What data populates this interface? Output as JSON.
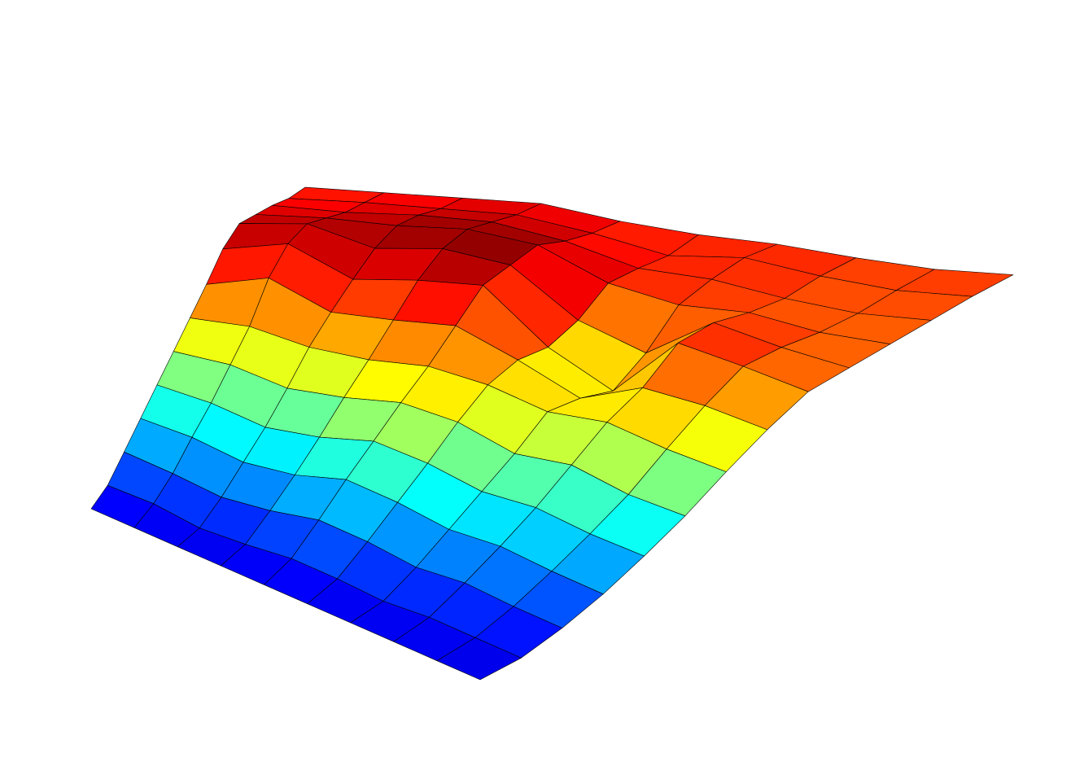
{
  "chart_data": {
    "type": "surface",
    "colormap": "jet",
    "edge_color": "#000000",
    "zlim": [
      0,
      10
    ],
    "z": [
      [
        1,
        1,
        1,
        1,
        1,
        1,
        1,
        1,
        1,
        1
      ],
      [
        1.5,
        1.5,
        1.2,
        1.3,
        1.5,
        1.4,
        1.2,
        1.3,
        1.2,
        1.1
      ],
      [
        2.5,
        2.3,
        2,
        2.2,
        2.6,
        2.4,
        2,
        2.1,
        1.8,
        1.6
      ],
      [
        3.5,
        3.4,
        3,
        3.2,
        3.8,
        3.5,
        3,
        3,
        2.6,
        2.3
      ],
      [
        4.5,
        4.4,
        4,
        4.3,
        4.9,
        4.6,
        4,
        4,
        3.5,
        3.2
      ],
      [
        5.5,
        5.6,
        5.2,
        5.5,
        6,
        5.8,
        5,
        5.2,
        4.5,
        4.2
      ],
      [
        6.5,
        6.8,
        6.5,
        6.6,
        7,
        6.8,
        6.2,
        6.4,
        5.8,
        5.4
      ],
      [
        7.5,
        8.5,
        7.5,
        7.8,
        8.2,
        7.2,
        6,
        7.2,
        7,
        6.5
      ],
      [
        8.6,
        9.5,
        8.4,
        9,
        9.4,
        7,
        5.5,
        8.5,
        8,
        7.4
      ],
      [
        9.2,
        9.8,
        9.2,
        9.8,
        9.6,
        7.5,
        6.5,
        8.6,
        8,
        7.6
      ],
      [
        9,
        9.4,
        9.6,
        10,
        9.8,
        8.5,
        8,
        8.2,
        7.8,
        7.8
      ],
      [
        8.8,
        9,
        9.4,
        9.6,
        9.2,
        8.4,
        8.4,
        8,
        7.8,
        8
      ],
      [
        8.5,
        8.8,
        9,
        9.2,
        8.8,
        8.2,
        8.6,
        8.2,
        8,
        8.2
      ],
      [
        8.4,
        8.6,
        8.8,
        9,
        8.6,
        8.4,
        8.4,
        8.2,
        8.1,
        8.3
      ]
    ]
  }
}
